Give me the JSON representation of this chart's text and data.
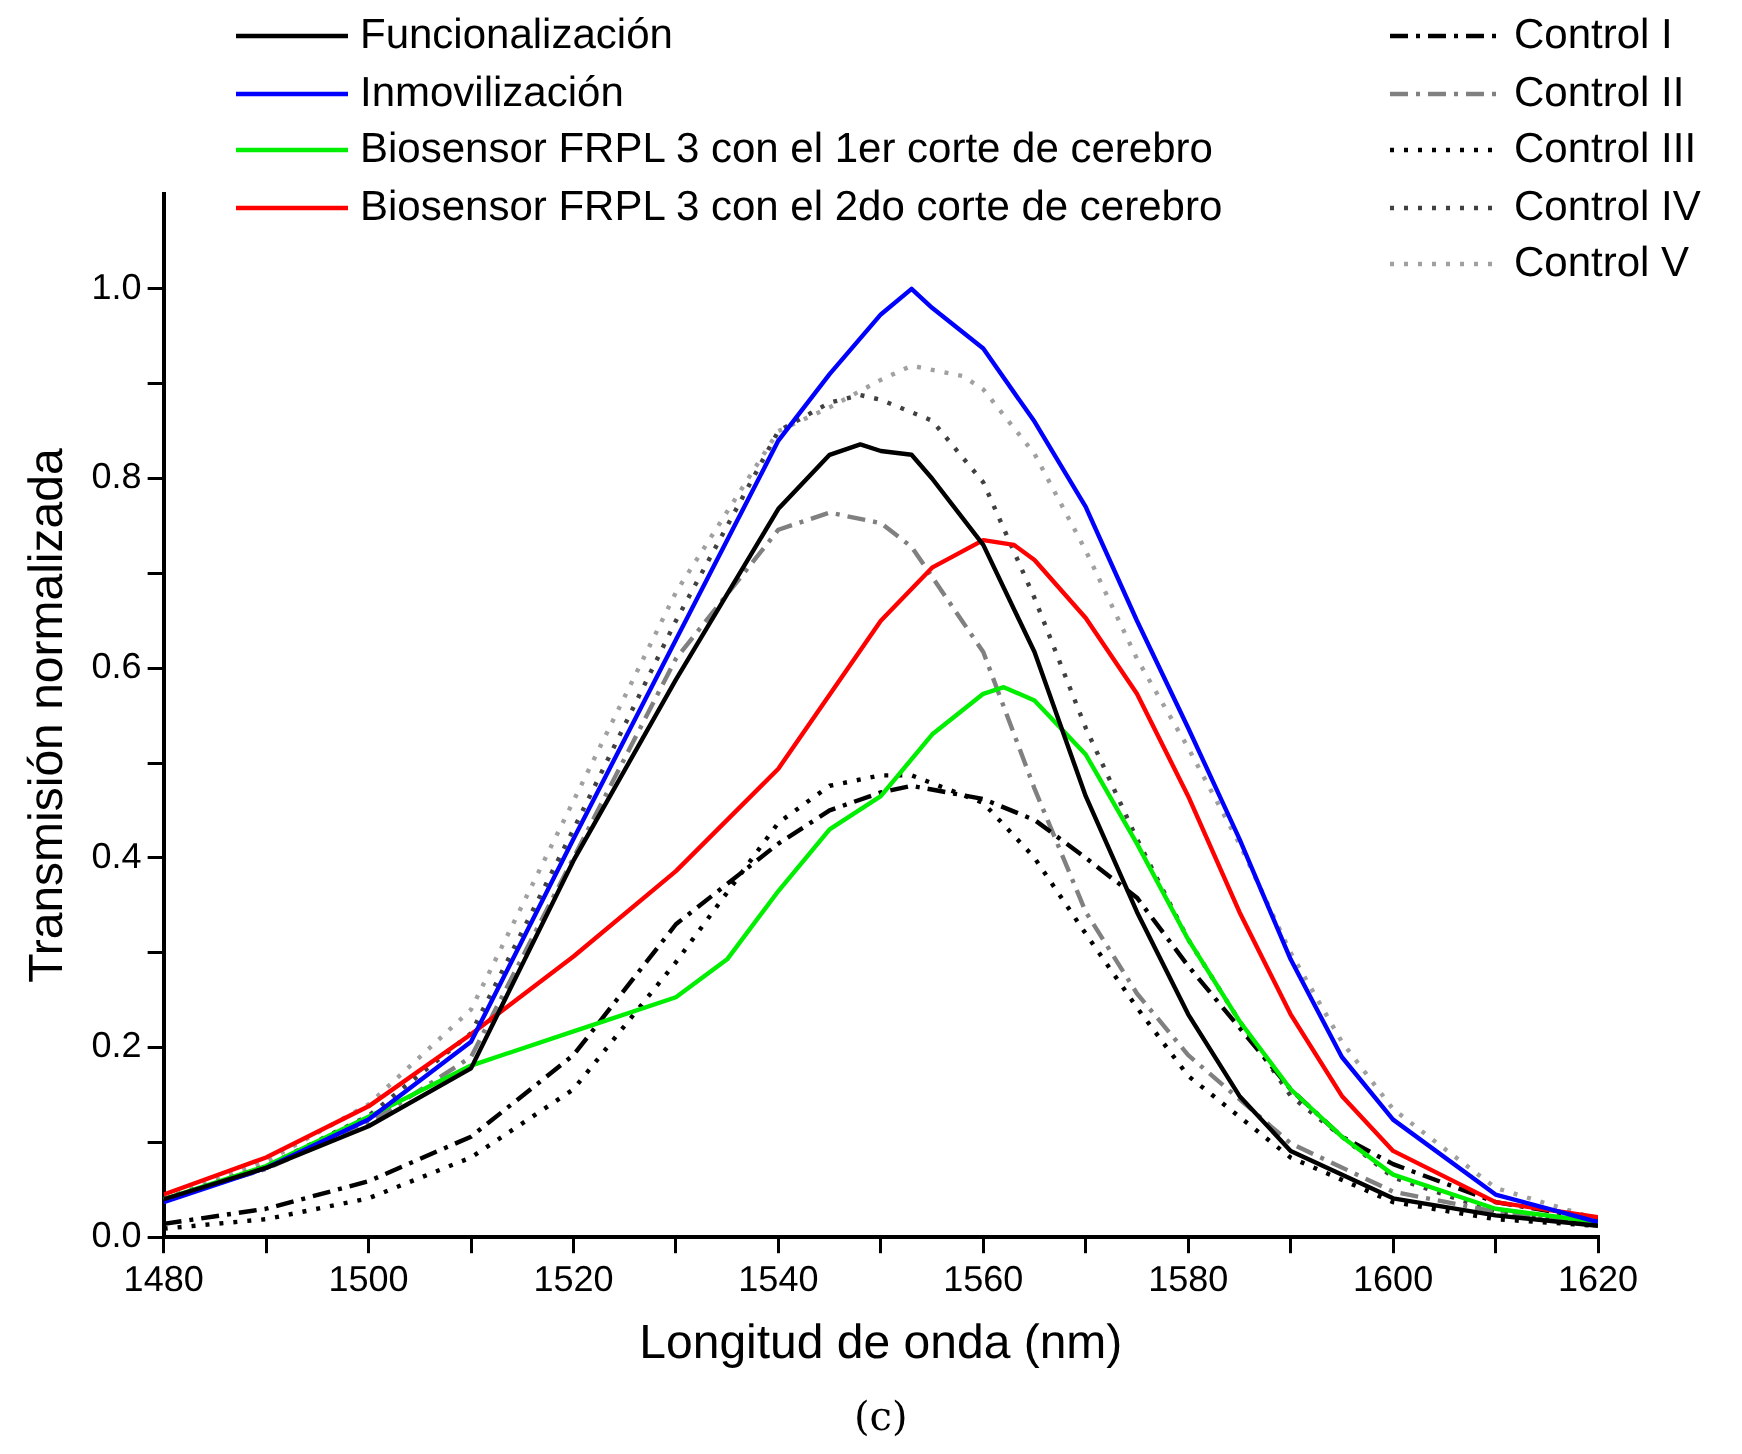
{
  "chart_data": {
    "type": "line",
    "xlabel": "Longitud de onda (nm)",
    "ylabel": "Transmisión normalizada",
    "annotations": [
      "(c)"
    ],
    "xlim": [
      1480,
      1620
    ],
    "ylim": [
      0,
      1.1
    ],
    "xticks": [
      1480,
      {
        "value": 1490,
        "label": null
      },
      1500,
      {
        "value": 1510,
        "label": null
      },
      1520,
      {
        "value": 1530,
        "label": null
      },
      1540,
      {
        "value": 1550,
        "label": null
      },
      1560,
      {
        "value": 1570,
        "label": null
      },
      1580,
      {
        "value": 1590,
        "label": null
      },
      1600,
      {
        "value": 1610,
        "label": null
      },
      1620
    ],
    "yticks": [
      {
        "value": 0,
        "label": "0.0"
      },
      {
        "value": 0.1,
        "label": null
      },
      0.2,
      {
        "value": 0.3,
        "label": null
      },
      0.4,
      {
        "value": 0.5,
        "label": null
      },
      0.6,
      {
        "value": 0.7,
        "label": null
      },
      0.8,
      {
        "value": 0.9,
        "label": null
      },
      {
        "value": 1,
        "label": "1.0"
      }
    ],
    "grid": false,
    "legend": "top",
    "marker": "none",
    "series": [
      {
        "name": "Funcionalización",
        "color": "#000000",
        "line_style": "solid",
        "x": [
          1480,
          1490,
          1500,
          1510,
          1520,
          1530,
          1540,
          1545,
          1548,
          1550,
          1553,
          1555,
          1560,
          1565,
          1570,
          1575,
          1580,
          1585,
          1590,
          1600,
          1610,
          1620
        ],
        "values": [
          0.04,
          0.073,
          0.117,
          0.178,
          0.397,
          0.588,
          0.768,
          0.825,
          0.836,
          0.829,
          0.825,
          0.8,
          0.73,
          0.617,
          0.465,
          0.343,
          0.235,
          0.149,
          0.091,
          0.041,
          0.023,
          0.012
        ]
      },
      {
        "name": "Inmovilización",
        "color": "#0000ff",
        "line_style": "solid",
        "x": [
          1480,
          1490,
          1500,
          1510,
          1520,
          1530,
          1540,
          1545,
          1550,
          1553,
          1555,
          1560,
          1565,
          1570,
          1575,
          1580,
          1585,
          1590,
          1595,
          1600,
          1610,
          1620
        ],
        "values": [
          0.037,
          0.073,
          0.124,
          0.206,
          0.42,
          0.63,
          0.84,
          0.91,
          0.973,
          1.0,
          0.98,
          0.937,
          0.86,
          0.77,
          0.65,
          0.537,
          0.42,
          0.293,
          0.19,
          0.124,
          0.045,
          0.016
        ]
      },
      {
        "name": "Biosensor FRPL 3 con el 1er corte de cerebro",
        "color": "#00ee00",
        "line_style": "solid",
        "x": [
          1480,
          1490,
          1500,
          1510,
          1520,
          1530,
          1535,
          1540,
          1545,
          1550,
          1555,
          1560,
          1562,
          1565,
          1570,
          1575,
          1580,
          1585,
          1590,
          1595,
          1600,
          1610,
          1620
        ],
        "values": [
          0.04,
          0.075,
          0.127,
          0.181,
          0.217,
          0.253,
          0.293,
          0.365,
          0.43,
          0.465,
          0.53,
          0.573,
          0.58,
          0.566,
          0.509,
          0.415,
          0.314,
          0.228,
          0.156,
          0.106,
          0.066,
          0.03,
          0.016
        ]
      },
      {
        "name": "Biosensor FRPL 3 con el 2do corte de cerebro",
        "color": "#ff0000",
        "line_style": "solid",
        "x": [
          1480,
          1490,
          1500,
          1510,
          1520,
          1530,
          1540,
          1550,
          1555,
          1560,
          1563,
          1565,
          1570,
          1575,
          1580,
          1585,
          1590,
          1595,
          1600,
          1610,
          1620
        ],
        "values": [
          0.045,
          0.084,
          0.138,
          0.214,
          0.296,
          0.386,
          0.494,
          0.65,
          0.706,
          0.735,
          0.73,
          0.714,
          0.653,
          0.573,
          0.465,
          0.343,
          0.235,
          0.149,
          0.091,
          0.037,
          0.021
        ]
      },
      {
        "name": "Control I",
        "color": "#000000",
        "line_style": "dashdot",
        "x": [
          1480,
          1490,
          1500,
          1510,
          1520,
          1530,
          1540,
          1545,
          1550,
          1553,
          1560,
          1565,
          1570,
          1575,
          1580,
          1585,
          1590,
          1595,
          1600,
          1610,
          1620
        ],
        "values": [
          0.014,
          0.03,
          0.059,
          0.106,
          0.192,
          0.33,
          0.415,
          0.45,
          0.469,
          0.476,
          0.462,
          0.44,
          0.4,
          0.358,
          0.286,
          0.221,
          0.156,
          0.106,
          0.077,
          0.037,
          0.019
        ]
      },
      {
        "name": "Control II",
        "color": "#808080",
        "line_style": "dashdot",
        "x": [
          1480,
          1490,
          1500,
          1510,
          1520,
          1530,
          1540,
          1545,
          1550,
          1553,
          1560,
          1565,
          1570,
          1575,
          1580,
          1590,
          1600,
          1610,
          1620
        ],
        "values": [
          0.04,
          0.072,
          0.12,
          0.19,
          0.4,
          0.61,
          0.746,
          0.764,
          0.753,
          0.728,
          0.617,
          0.473,
          0.343,
          0.257,
          0.192,
          0.099,
          0.048,
          0.027,
          0.012
        ]
      },
      {
        "name": "Control III",
        "color": "#000000",
        "line_style": "dotted",
        "x": [
          1480,
          1490,
          1500,
          1510,
          1520,
          1530,
          1540,
          1545,
          1550,
          1553,
          1560,
          1565,
          1570,
          1575,
          1580,
          1590,
          1600,
          1610,
          1620
        ],
        "values": [
          0.009,
          0.019,
          0.041,
          0.084,
          0.156,
          0.29,
          0.437,
          0.476,
          0.487,
          0.487,
          0.458,
          0.4,
          0.32,
          0.242,
          0.17,
          0.084,
          0.037,
          0.019,
          0.012
        ]
      },
      {
        "name": "Control IV",
        "color": "#404040",
        "line_style": "dotted",
        "x": [
          1480,
          1490,
          1500,
          1510,
          1520,
          1530,
          1540,
          1545,
          1548,
          1550,
          1555,
          1560,
          1565,
          1570,
          1575,
          1580,
          1585,
          1590,
          1600,
          1610,
          1620
        ],
        "values": [
          0.04,
          0.075,
          0.128,
          0.215,
          0.43,
          0.65,
          0.85,
          0.88,
          0.888,
          0.883,
          0.861,
          0.796,
          0.674,
          0.537,
          0.42,
          0.314,
          0.228,
          0.149,
          0.063,
          0.027,
          0.014
        ]
      },
      {
        "name": "Control V",
        "color": "#a0a0a0",
        "line_style": "dotted",
        "x": [
          1480,
          1490,
          1500,
          1510,
          1520,
          1530,
          1540,
          1545,
          1550,
          1553,
          1558,
          1560,
          1565,
          1570,
          1575,
          1580,
          1585,
          1590,
          1595,
          1600,
          1610,
          1620
        ],
        "values": [
          0.04,
          0.08,
          0.14,
          0.24,
          0.46,
          0.68,
          0.85,
          0.875,
          0.904,
          0.919,
          0.908,
          0.894,
          0.826,
          0.724,
          0.61,
          0.516,
          0.415,
          0.3,
          0.206,
          0.135,
          0.052,
          0.019
        ]
      }
    ]
  }
}
